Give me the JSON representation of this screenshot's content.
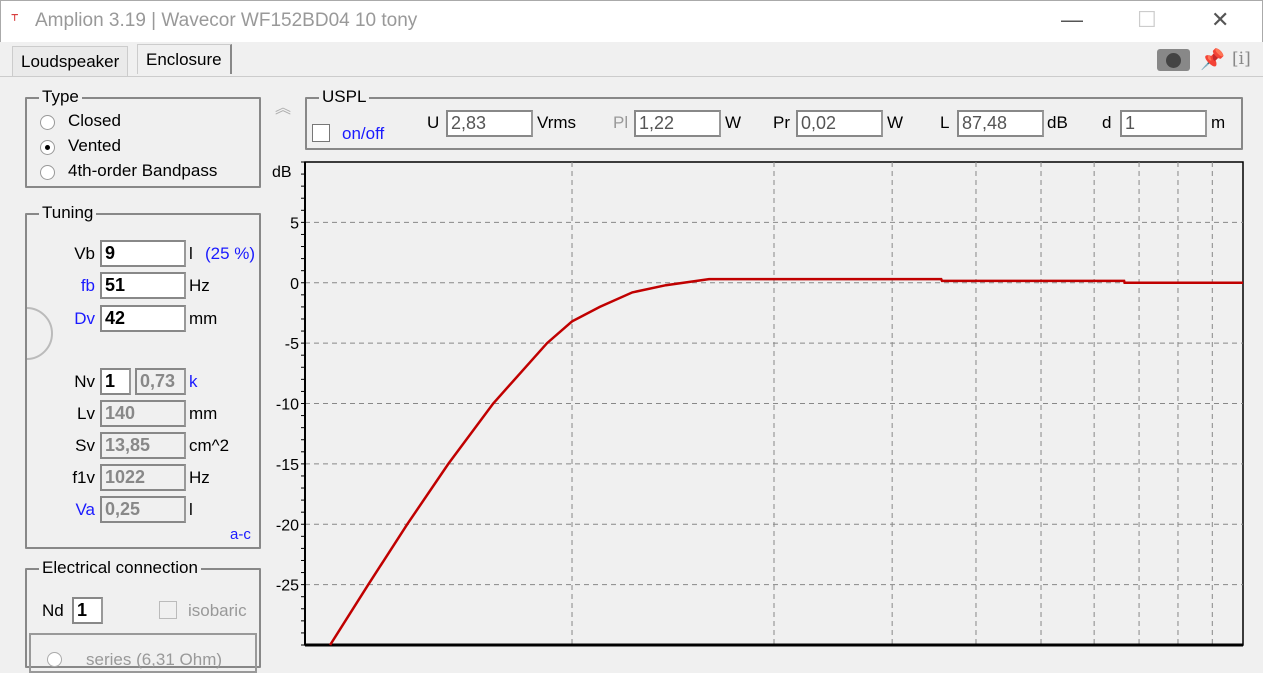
{
  "window": {
    "title": "Amplion 3.19 | Wavecor WF152BD04 10 tony",
    "minimize": "—",
    "maximize": "☐",
    "close": "✕"
  },
  "tabs": [
    {
      "label": "Loudspeaker"
    },
    {
      "label": "Enclosure",
      "active": true
    }
  ],
  "toolbar_icons": [
    "camera-icon",
    "pin-icon",
    "info-icon"
  ],
  "info_label": "[i]",
  "type_group": {
    "title": "Type",
    "options": [
      {
        "label": "Closed",
        "selected": false
      },
      {
        "label": "Vented",
        "selected": true
      },
      {
        "label": "4th-order Bandpass",
        "selected": false
      }
    ]
  },
  "tuning": {
    "title": "Tuning",
    "vb": {
      "label": "Vb",
      "value": "9",
      "unit": "l",
      "percent": "(25 %)"
    },
    "fb": {
      "label": "fb",
      "value": "51",
      "unit": "Hz"
    },
    "dv": {
      "label": "Dv",
      "value": "42",
      "unit": "mm"
    },
    "nv": {
      "label": "Nv",
      "value": "1",
      "k_value": "0,73",
      "k_label": "k"
    },
    "lv": {
      "label": "Lv",
      "value": "140",
      "unit": "mm"
    },
    "sv": {
      "label": "Sv",
      "value": "13,85",
      "unit": "cm^2"
    },
    "f1v": {
      "label": "f1v",
      "value": "1022",
      "unit": "Hz"
    },
    "va": {
      "label": "Va",
      "value": "0,25",
      "unit": "l"
    },
    "ac_link": "a-c"
  },
  "electrical": {
    "title": "Electrical connection",
    "nd_label": "Nd",
    "nd_value": "1",
    "isobaric_label": "isobaric",
    "isobaric_checked": false,
    "series_label": "series (6,31 Ohm)"
  },
  "uspl": {
    "title": "USPL",
    "collapse_icon": "double-chevron-up-icon",
    "onoff_label": "on/off",
    "onoff_checked": false,
    "u": {
      "label": "U",
      "value": "2,83",
      "unit": "Vrms"
    },
    "pl": {
      "label": "Pl",
      "value": "1,22",
      "unit": "W"
    },
    "pr": {
      "label": "Pr",
      "value": "0,02",
      "unit": "W"
    },
    "l": {
      "label": "L",
      "value": "87,48",
      "unit": "dB"
    },
    "d": {
      "label": "d",
      "value": "1",
      "unit": "m"
    }
  },
  "chart_data": {
    "type": "line",
    "ylabel": "dB",
    "ylim": [
      -30,
      10
    ],
    "yticks": [
      "5",
      "0",
      "-5",
      "-10",
      "-15",
      "-20",
      "-25"
    ],
    "ytick_values": [
      5,
      0,
      -5,
      -10,
      -15,
      -20,
      -25
    ],
    "xscale": "log",
    "xlim": [
      0.4,
      10
    ],
    "xgrid": [
      1,
      2,
      3,
      4,
      5,
      6,
      7,
      8,
      9
    ],
    "grid": true,
    "series": [
      {
        "color": "#c00000",
        "x": [
          0.436,
          0.497,
          0.568,
          0.654,
          0.763,
          0.918,
          1.0,
          1.1,
          1.23,
          1.38,
          1.6,
          3.55,
          3.56,
          6.65,
          6.66,
          10
        ],
        "y": [
          -30,
          -25,
          -20,
          -15,
          -10,
          -5,
          -3.2,
          -2,
          -0.8,
          -0.2,
          0.3,
          0.3,
          0.15,
          0.15,
          0,
          0
        ]
      }
    ]
  }
}
